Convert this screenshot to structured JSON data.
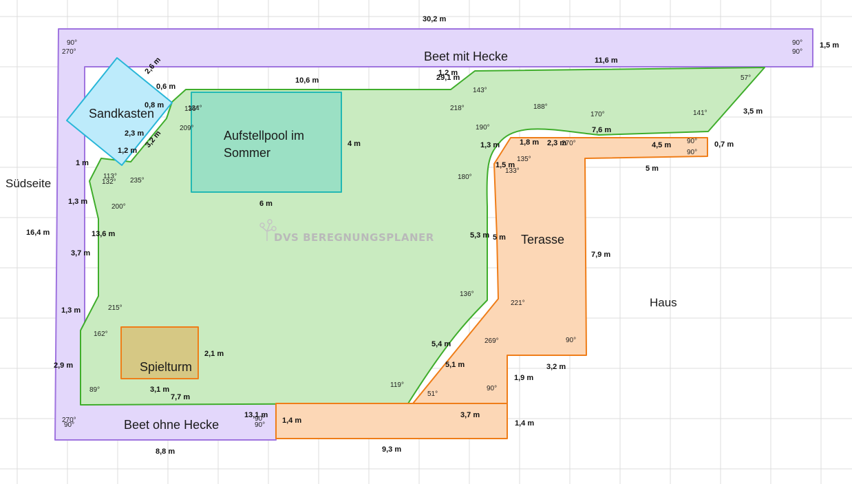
{
  "app": {
    "watermark": "DVS BEREGNUNGSPLANER"
  },
  "colors": {
    "grid": "#dcdcdc",
    "beet_fill": "#e3d7fb",
    "beet_stroke": "#9f73df",
    "lawn_fill": "#c9ebc0",
    "lawn_stroke": "#3fad2b",
    "pool_fill": "#9be0c4",
    "pool_stroke": "#22b8b3",
    "sand_fill": "#bdebfb",
    "sand_stroke": "#28b6d8",
    "terrace_fill": "#fcd7b6",
    "terrace_stroke": "#ef7d18",
    "tower_fill": "#d6c884",
    "tower_stroke": "#ef7d18"
  },
  "regions": {
    "beet_hecke": "Beet mit Hecke",
    "beet_ohne": "Beet ohne Hecke",
    "sandkasten": "Sandkasten",
    "pool_line1": "Aufstellpool im",
    "pool_line2": "Sommer",
    "spielturm": "Spielturm",
    "terasse": "Terasse",
    "haus": "Haus",
    "suedseite": "Südseite"
  },
  "dimensions": [
    "30,2 m",
    "1,5 m",
    "11,6 m",
    "1,2 m",
    "29,1 m",
    "10,6 m",
    "2,6 m",
    "0,6 m",
    "0,8 m",
    "3,5 m",
    "7,6 m",
    "0,7 m",
    "4,5 m",
    "2,3 m",
    "1,8 m",
    "1,3 m",
    "1,5 m",
    "5 m",
    "4 m",
    "2,3 m",
    "3,2 m",
    "1,2 m",
    "1 m",
    "1,3 m",
    "6 m",
    "16,4 m",
    "13,6 m",
    "3,7 m",
    "5,3 m",
    "5 m",
    "7,9 m",
    "1,3 m",
    "5,4 m",
    "2,1 m",
    "2,9 m",
    "5,1 m",
    "1,9 m",
    "3,2 m",
    "3,1 m",
    "7,7 m",
    "13,1 m",
    "3,7 m",
    "1,4 m",
    "1,4 m",
    "8,8 m",
    "9,3 m"
  ],
  "angles": [
    "90°",
    "270°",
    "90°",
    "90°",
    "57°",
    "143°",
    "218°",
    "188°",
    "170°",
    "141°",
    "190°",
    "270°",
    "90°",
    "90°",
    "135°",
    "133°",
    "136°",
    "134°",
    "209°",
    "113°",
    "132°",
    "235°",
    "200°",
    "180°",
    "136°",
    "221°",
    "215°",
    "162°",
    "269°",
    "90°",
    "119°",
    "51°",
    "90°",
    "89°",
    "270°",
    "90°",
    "90°",
    "90°"
  ]
}
